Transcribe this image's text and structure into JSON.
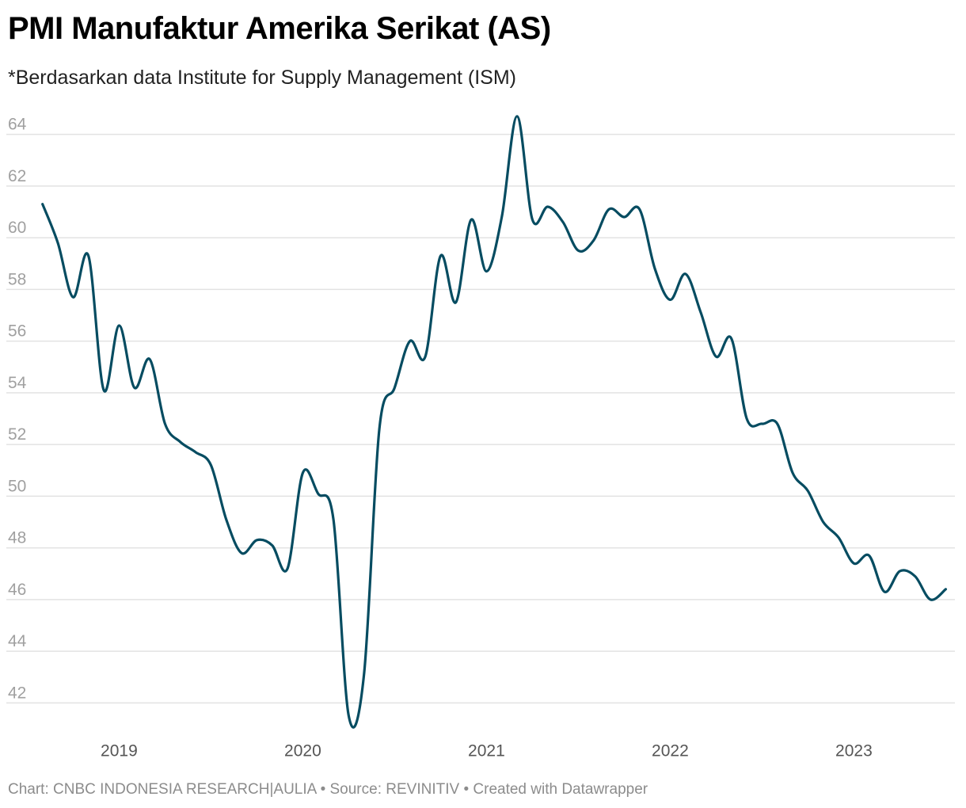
{
  "header": {
    "title": "PMI Manufaktur Amerika Serikat (AS)",
    "subtitle": "*Berdasarkan data Institute for Supply Management (ISM)"
  },
  "footer": {
    "chart_label": "Chart:",
    "chart_credit": "CNBC INDONESIA RESEARCH|AULIA",
    "separator1": "•",
    "source_label": "Source:",
    "source": "REVINITIV",
    "separator2": "•",
    "created": "Created with Datawrapper"
  },
  "colors": {
    "line": "#064c61",
    "grid": "#e2e2e2",
    "axis_text": "#a0a0a0"
  },
  "chart_data": {
    "type": "line",
    "title": "PMI Manufaktur Amerika Serikat (AS)",
    "subtitle": "*Berdasarkan data Institute for Supply Management (ISM)",
    "xlabel": "",
    "ylabel": "",
    "grid": true,
    "legend": "none",
    "x_start": "2018-08",
    "x_range": [
      2018.55,
      2023.55
    ],
    "ylim": [
      41,
      65
    ],
    "y_ticks": [
      "42",
      "44",
      "46",
      "48",
      "50",
      "52",
      "54",
      "56",
      "58",
      "60",
      "62",
      "64"
    ],
    "x_ticks": [
      "2019",
      "2020",
      "2021",
      "2022",
      "2023"
    ],
    "series": [
      {
        "name": "PMI Manufaktur AS (ISM)",
        "values": [
          61.3,
          59.8,
          57.7,
          59.3,
          54.1,
          56.6,
          54.2,
          55.3,
          52.8,
          52.1,
          51.7,
          51.2,
          49.1,
          47.8,
          48.3,
          48.1,
          47.2,
          50.9,
          50.1,
          49.1,
          41.5,
          43.1,
          52.6,
          54.2,
          56.0,
          55.4,
          59.3,
          57.5,
          60.7,
          58.7,
          60.8,
          64.7,
          60.7,
          61.2,
          60.6,
          59.5,
          59.9,
          61.1,
          60.8,
          61.1,
          58.8,
          57.6,
          58.6,
          57.1,
          55.4,
          56.1,
          53.0,
          52.8,
          52.8,
          50.9,
          50.2,
          49.0,
          48.4,
          47.4,
          47.7,
          46.3,
          47.1,
          46.9,
          46.0,
          46.4
        ]
      }
    ]
  }
}
